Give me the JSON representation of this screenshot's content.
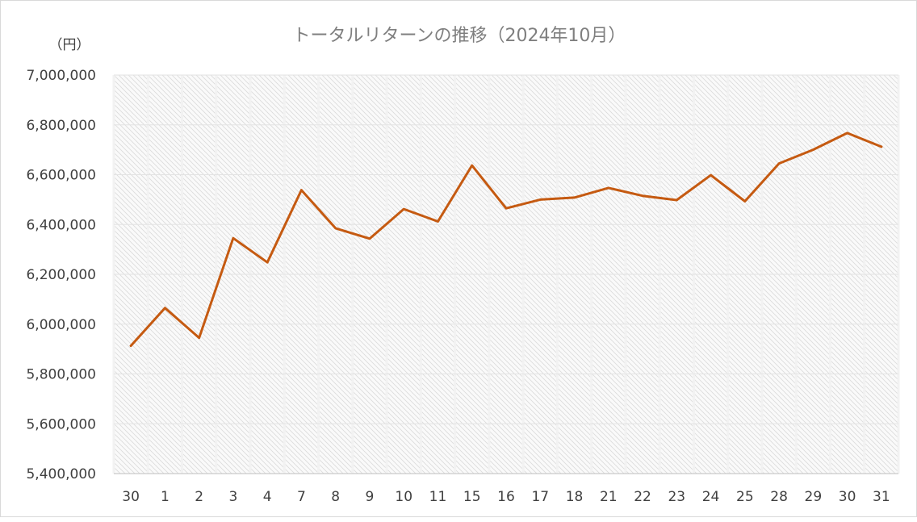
{
  "chart_data": {
    "type": "line",
    "title": "トータルリターンの推移（2024年10月）",
    "y_unit_label": "（円）",
    "categories": [
      "30",
      "1",
      "2",
      "3",
      "4",
      "7",
      "8",
      "9",
      "10",
      "11",
      "15",
      "16",
      "17",
      "18",
      "21",
      "22",
      "23",
      "24",
      "25",
      "28",
      "29",
      "30",
      "31"
    ],
    "series": [
      {
        "values": [
          5913000,
          6065000,
          5945000,
          6345000,
          6248000,
          6538000,
          6385000,
          6343000,
          6462000,
          6412000,
          6637000,
          6465000,
          6500000,
          6508000,
          6547000,
          6515000,
          6498000,
          6598000,
          6493000,
          6645000,
          6700000,
          6767000,
          6712000
        ],
        "color": "#c55a11"
      }
    ],
    "ylim": [
      5400000,
      7000000
    ],
    "yticks": [
      5400000,
      5600000,
      5800000,
      6000000,
      6200000,
      6400000,
      6600000,
      6800000,
      7000000
    ],
    "grid": true,
    "legend": "none"
  }
}
